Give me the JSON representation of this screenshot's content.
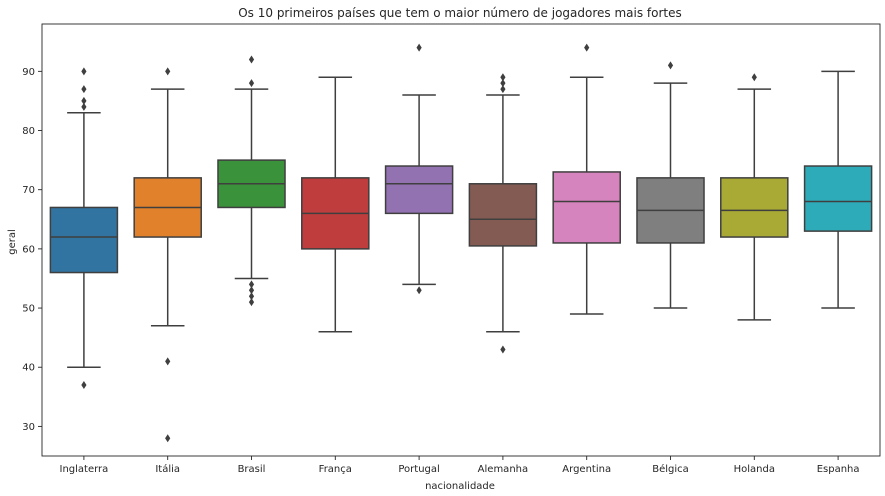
{
  "chart_data": {
    "type": "box",
    "title": "Os 10 primeiros países que tem o maior número de jogadores mais fortes",
    "xlabel": "nacionalidade",
    "ylabel": "geral",
    "ylim": [
      25,
      98
    ],
    "yticks": [
      30,
      40,
      50,
      60,
      70,
      80,
      90
    ],
    "grid": false,
    "legend": "none",
    "categories": [
      "Inglaterra",
      "Itália",
      "Brasil",
      "França",
      "Portugal",
      "Alemanha",
      "Argentina",
      "Bélgica",
      "Holanda",
      "Espanha"
    ],
    "boxes": [
      {
        "category": "Inglaterra",
        "color": "#3274a1",
        "whisker_low": 40,
        "q1": 56,
        "median": 62,
        "q3": 67,
        "whisker_high": 83,
        "outliers": [
          37,
          84,
          85,
          87,
          90
        ]
      },
      {
        "category": "Itália",
        "color": "#e1812c",
        "whisker_low": 47,
        "q1": 62,
        "median": 67,
        "q3": 72,
        "whisker_high": 87,
        "outliers": [
          28,
          41,
          90
        ]
      },
      {
        "category": "Brasil",
        "color": "#3a923a",
        "whisker_low": 55,
        "q1": 67,
        "median": 71,
        "q3": 75,
        "whisker_high": 87,
        "outliers": [
          51,
          52,
          53,
          54,
          88,
          92
        ]
      },
      {
        "category": "França",
        "color": "#c03d3e",
        "whisker_low": 46,
        "q1": 60,
        "median": 66,
        "q3": 72,
        "whisker_high": 89,
        "outliers": []
      },
      {
        "category": "Portugal",
        "color": "#9372b2",
        "whisker_low": 54,
        "q1": 66,
        "median": 71,
        "q3": 74,
        "whisker_high": 86,
        "outliers": [
          53,
          94
        ]
      },
      {
        "category": "Alemanha",
        "color": "#845b53",
        "whisker_low": 46,
        "q1": 60.5,
        "median": 65,
        "q3": 71,
        "whisker_high": 86,
        "outliers": [
          43,
          87,
          88,
          89
        ]
      },
      {
        "category": "Argentina",
        "color": "#d684bd",
        "whisker_low": 49,
        "q1": 61,
        "median": 68,
        "q3": 73,
        "whisker_high": 89,
        "outliers": [
          94
        ]
      },
      {
        "category": "Bélgica",
        "color": "#7f7f7f",
        "whisker_low": 50,
        "q1": 61,
        "median": 66.5,
        "q3": 72,
        "whisker_high": 88,
        "outliers": [
          91
        ]
      },
      {
        "category": "Holanda",
        "color": "#a9aa35",
        "whisker_low": 48,
        "q1": 62,
        "median": 66.5,
        "q3": 72,
        "whisker_high": 87,
        "outliers": [
          89
        ]
      },
      {
        "category": "Espanha",
        "color": "#2eabb8",
        "whisker_low": 50,
        "q1": 63,
        "median": 68,
        "q3": 74,
        "whisker_high": 90,
        "outliers": []
      }
    ]
  }
}
